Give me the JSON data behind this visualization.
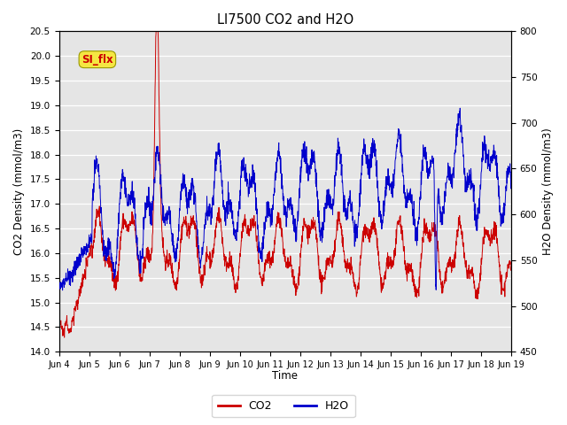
{
  "title": "LI7500 CO2 and H2O",
  "xlabel": "Time",
  "ylabel_left": "CO2 Density (mmol/m3)",
  "ylabel_right": "H2O Density (mmol/m3)",
  "ylim_left": [
    14.0,
    20.5
  ],
  "ylim_right": [
    450,
    800
  ],
  "yticks_left": [
    14.0,
    14.5,
    15.0,
    15.5,
    16.0,
    16.5,
    17.0,
    17.5,
    18.0,
    18.5,
    19.0,
    19.5,
    20.0,
    20.5
  ],
  "yticks_right": [
    450,
    500,
    550,
    600,
    650,
    700,
    750,
    800
  ],
  "xtick_labels": [
    "Jun 4",
    "Jun 5",
    "Jun 6",
    "Jun 7",
    "Jun 8",
    "Jun 9",
    "Jun 10",
    "Jun 11",
    "Jun 12",
    "Jun 13",
    "Jun 14",
    "Jun 15",
    "Jun 16",
    "Jun 17",
    "Jun 18",
    "Jun 19"
  ],
  "annotation_text": "SI_flx",
  "co2_color": "#cc0000",
  "h2o_color": "#0000cc",
  "background_color": "#ffffff",
  "plot_bg_color": "#e5e5e5",
  "grid_color": "#ffffff",
  "legend_co2": "CO2",
  "legend_h2o": "H2O",
  "n_points": 2000,
  "seed": 42
}
